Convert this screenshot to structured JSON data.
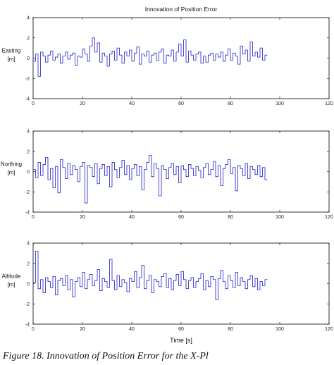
{
  "figure": {
    "caption": "Figure 18. Innovation of Position Error for the X-Pl"
  },
  "chart_data": [
    {
      "type": "line",
      "step": true,
      "title": "Innovation of Position Error",
      "ylabel": [
        "Easting",
        "[m]"
      ],
      "xlabel": "",
      "xlim": [
        0,
        120
      ],
      "ylim": [
        -4,
        4
      ],
      "xticks": [
        0,
        20,
        40,
        60,
        80,
        100,
        120
      ],
      "yticks": [
        -4,
        -2,
        0,
        2,
        4
      ],
      "color": "#2a2ad0",
      "series": [
        {
          "x_start": 0,
          "x_step": 1,
          "values": [
            -0.3,
            0.4,
            -1.8,
            0.6,
            0.2,
            -0.4,
            0.3,
            0.7,
            -0.2,
            0.1,
            0.4,
            -0.5,
            0.2,
            0.6,
            -0.1,
            0.3,
            0.5,
            -0.7,
            0.2,
            0.1,
            0.9,
            0.4,
            -0.3,
            1.2,
            2.0,
            0.6,
            1.5,
            -0.4,
            0.5,
            0.2,
            -0.8,
            0.4,
            0.7,
            -0.2,
            1.0,
            0.3,
            -0.5,
            0.6,
            0.2,
            0.8,
            -0.3,
            0.5,
            1.1,
            -0.6,
            0.4,
            0.2,
            0.7,
            -0.4,
            0.3,
            0.5,
            -0.2,
            0.6,
            0.9,
            -0.5,
            0.3,
            0.2,
            0.8,
            -0.3,
            0.6,
            1.4,
            0.2,
            1.8,
            -0.4,
            0.7,
            0.3,
            -0.2,
            0.4,
            0.6,
            -0.5,
            0.2,
            -0.4,
            0.3,
            0.5,
            -0.2,
            0.4,
            0.1,
            0.6,
            -0.3,
            0.3,
            0.9,
            -0.2,
            0.5,
            0.2,
            -0.6,
            1.2,
            0.4,
            0.8,
            -0.3,
            1.6,
            0.2,
            0.6,
            0.1,
            1.0,
            -0.2,
            0.3
          ]
        }
      ]
    },
    {
      "type": "line",
      "step": true,
      "title": "",
      "ylabel": [
        "Northing",
        "[m]"
      ],
      "xlabel": "",
      "xlim": [
        0,
        120
      ],
      "ylim": [
        -4,
        4
      ],
      "xticks": [
        0,
        20,
        40,
        60,
        80,
        100,
        120
      ],
      "yticks": [
        -4,
        -2,
        0,
        2,
        4
      ],
      "color": "#2a2ad0",
      "series": [
        {
          "x_start": 0,
          "x_step": 1,
          "values": [
            0.2,
            -0.6,
            0.9,
            -0.4,
            0.7,
            1.4,
            -0.8,
            0.3,
            -1.6,
            0.5,
            -2.1,
            1.2,
            0.4,
            -0.7,
            0.8,
            -0.3,
            0.6,
            0.2,
            -1.0,
            0.5,
            0.9,
            -3.1,
            0.6,
            0.4,
            -0.5,
            0.8,
            -1.2,
            0.3,
            0.7,
            -0.4,
            0.5,
            -1.5,
            0.9,
            0.2,
            -0.6,
            0.4,
            1.1,
            -0.3,
            0.6,
            -0.8,
            0.3,
            0.7,
            -0.4,
            0.5,
            -1.8,
            0.2,
            0.9,
            1.6,
            -0.5,
            0.8,
            0.3,
            -2.4,
            0.6,
            0.2,
            -0.7,
            0.4,
            0.8,
            -0.3,
            0.5,
            -1.1,
            0.6,
            0.2,
            -0.5,
            0.7,
            0.3,
            -0.4,
            0.5,
            0.1,
            -0.6,
            0.4,
            0.8,
            -0.3,
            0.2,
            1.0,
            -0.5,
            0.6,
            -1.4,
            0.3,
            0.7,
            1.2,
            -0.2,
            0.4,
            -1.9,
            0.6,
            0.3,
            -0.4,
            0.8,
            -0.7,
            0.5,
            0.2,
            -0.3,
            0.6,
            -0.5,
            0.4,
            -0.8
          ]
        }
      ]
    },
    {
      "type": "line",
      "step": true,
      "title": "",
      "ylabel": [
        "Altitude",
        "[m]"
      ],
      "xlabel": "Time [s]",
      "xlim": [
        0,
        120
      ],
      "ylim": [
        -4,
        4
      ],
      "xticks": [
        0,
        20,
        40,
        60,
        80,
        100,
        120
      ],
      "yticks": [
        -4,
        -2,
        0,
        2,
        4
      ],
      "color": "#2a2ad0",
      "series": [
        {
          "x_start": 0,
          "x_step": 1,
          "values": [
            0.1,
            3.2,
            -0.5,
            0.4,
            -0.9,
            0.6,
            0.2,
            -0.4,
            0.7,
            -1.1,
            0.3,
            0.5,
            -0.2,
            0.8,
            -0.6,
            0.4,
            -1.3,
            0.2,
            0.6,
            -0.3,
            1.1,
            -0.5,
            0.4,
            0.9,
            -0.2,
            0.3,
            1.4,
            -0.7,
            0.5,
            0.2,
            -0.4,
            2.4,
            0.3,
            -0.6,
            0.8,
            -0.3,
            0.4,
            0.1,
            -0.8,
            0.5,
            0.2,
            1.2,
            -0.4,
            0.6,
            1.8,
            -0.5,
            0.3,
            0.8,
            -0.9,
            0.4,
            0.2,
            -0.3,
            0.7,
            1.0,
            -0.4,
            0.5,
            -0.6,
            0.3,
            0.9,
            -0.2,
            1.2,
            0.4,
            -0.5,
            0.3,
            0.6,
            -0.4,
            0.2,
            0.5,
            1.0,
            -0.6,
            0.3,
            -0.3,
            0.7,
            0.4,
            -1.6,
            0.5,
            1.3,
            0.2,
            -0.5,
            0.8,
            0.3,
            -0.4,
            1.1,
            -0.2,
            0.6,
            0.2,
            -0.5,
            0.4,
            0.8,
            -0.3,
            0.5,
            -0.6,
            0.2,
            -0.2,
            0.4
          ]
        }
      ]
    }
  ]
}
